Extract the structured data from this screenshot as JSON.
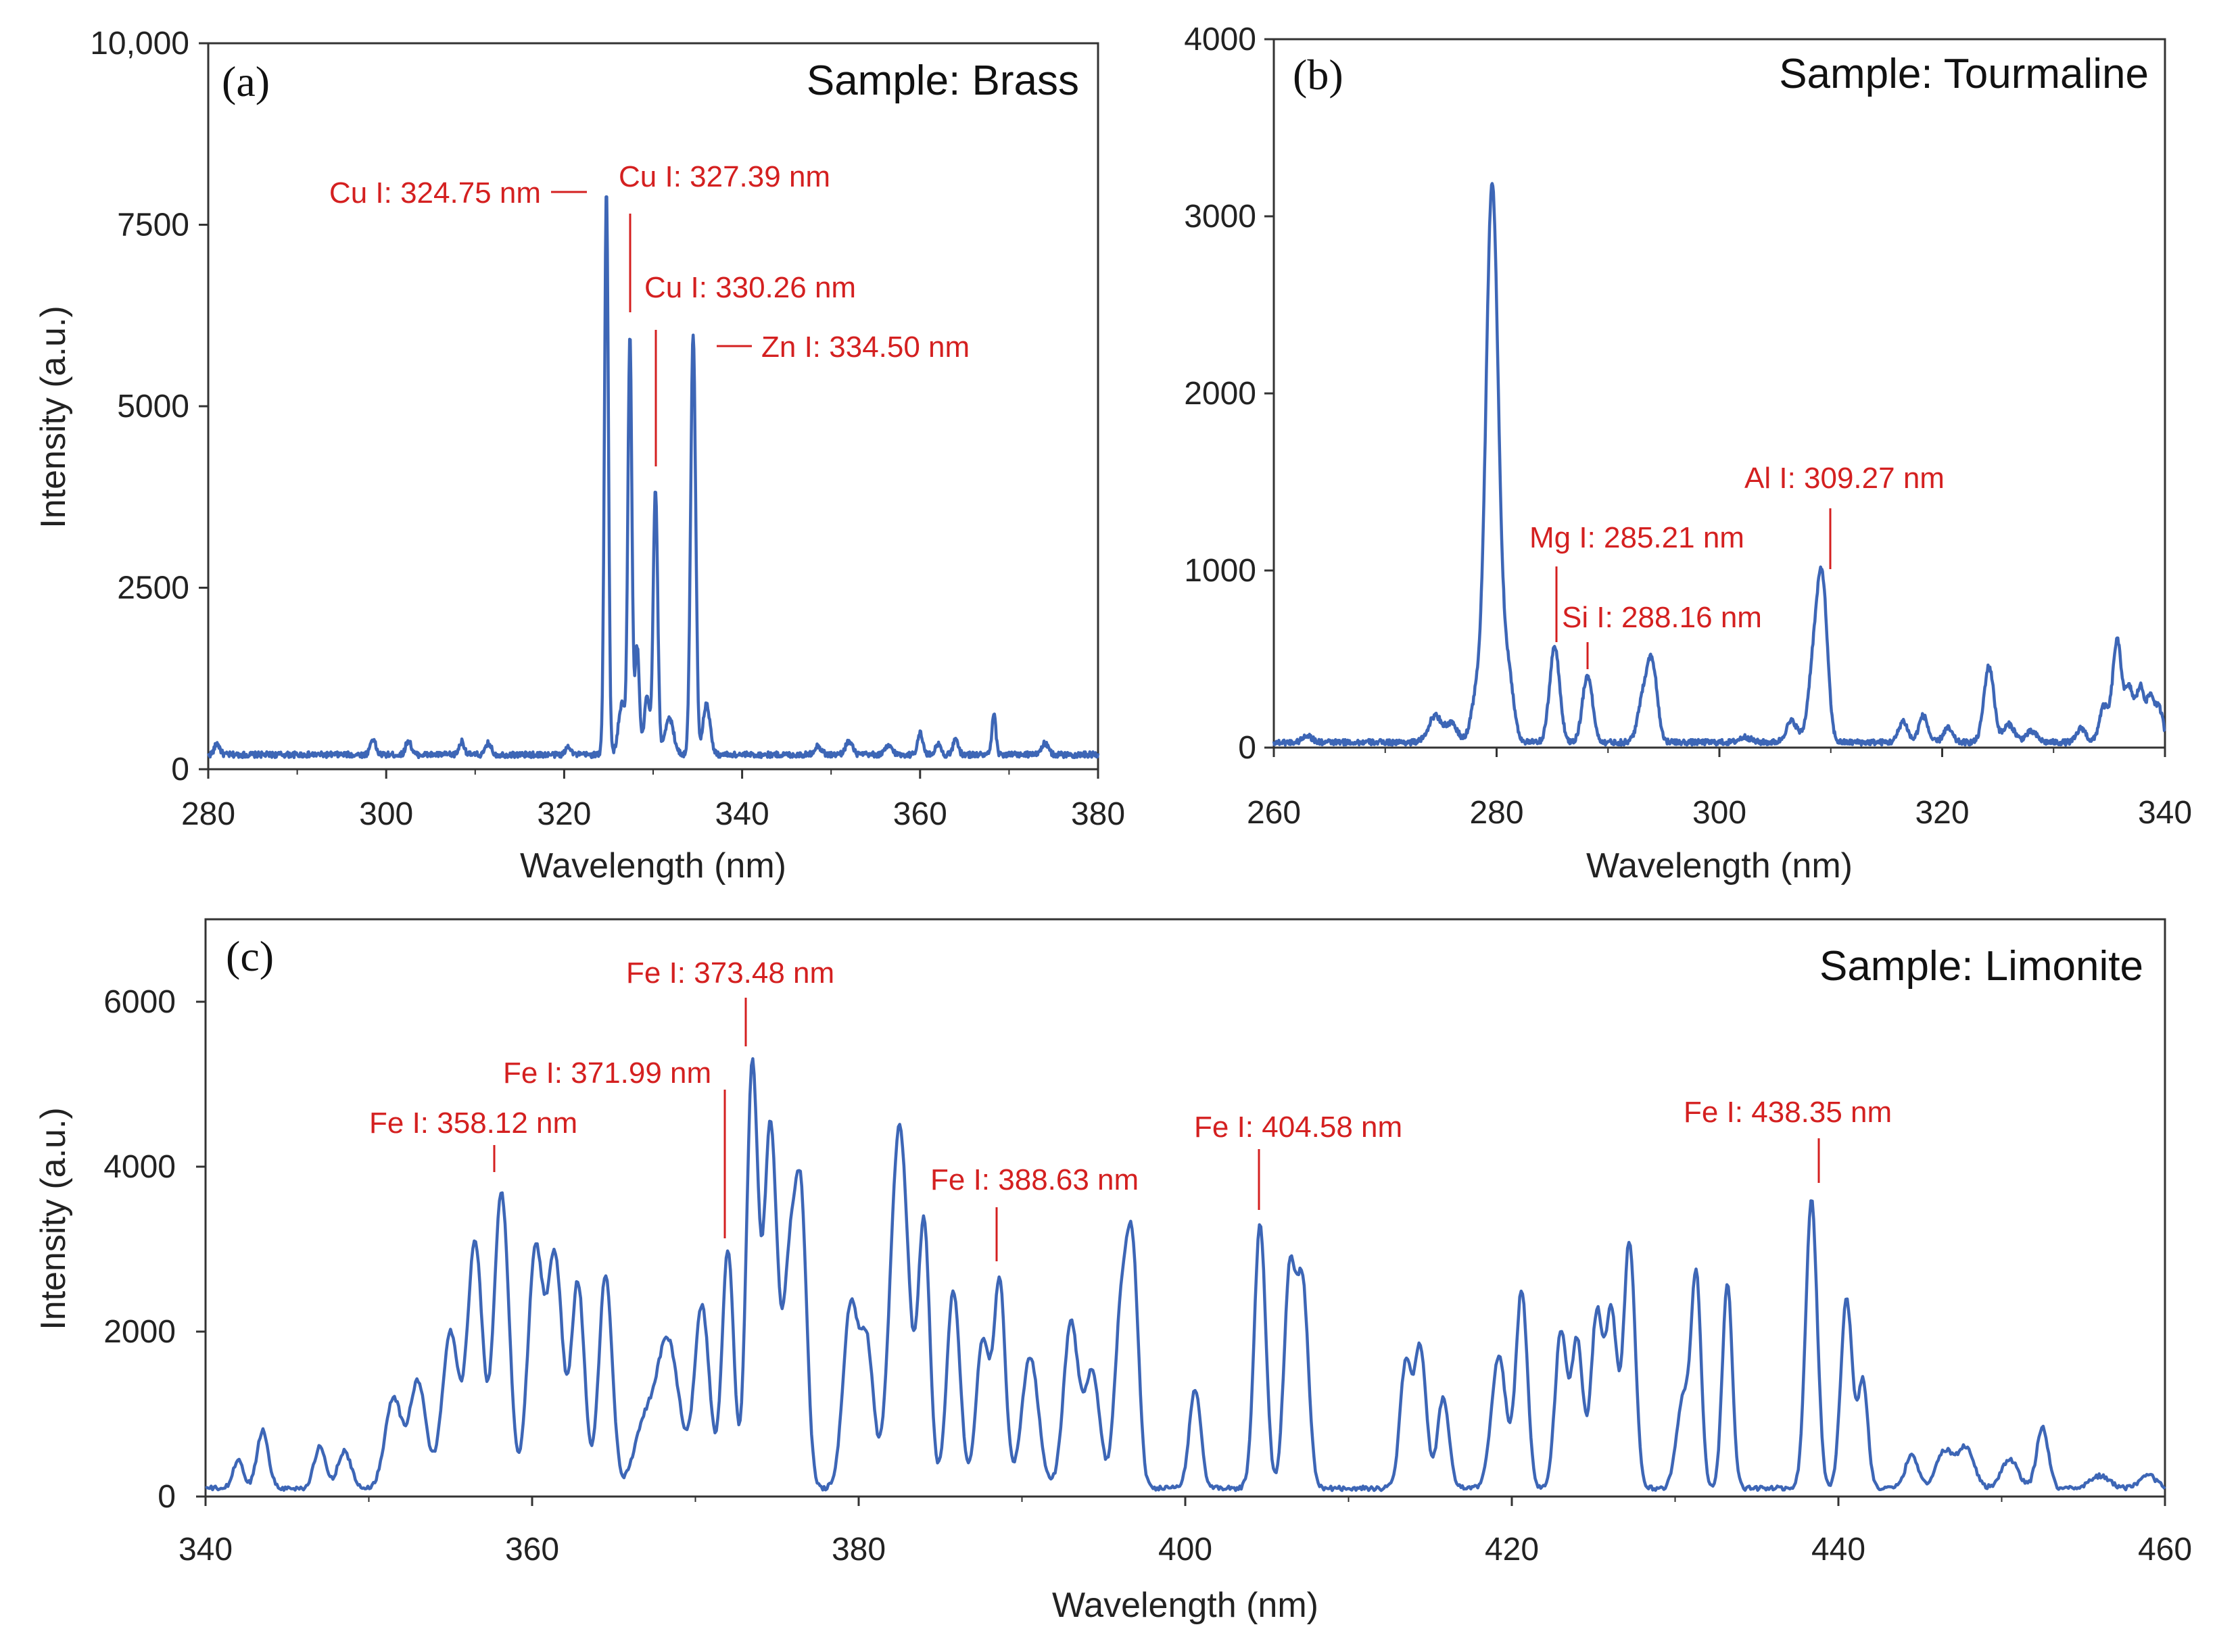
{
  "colors": {
    "line": "#3d66b6",
    "annotation": "#d42020",
    "axis": "#333333"
  },
  "chart_data": [
    {
      "id": "a",
      "type": "line",
      "panel_label": "(a)",
      "title": "Sample: Brass",
      "xlabel": "Wavelength (nm)",
      "ylabel": "Intensity (a.u.)",
      "xlim": [
        280,
        380
      ],
      "ylim": [
        0,
        10000
      ],
      "xticks": [
        280,
        300,
        320,
        340,
        360,
        380
      ],
      "yticks": [
        0,
        2500,
        5000,
        7500,
        10000
      ],
      "ytick_labels": [
        "0",
        "2500",
        "5000",
        "7500",
        "10,000"
      ],
      "baseline": 200,
      "peaks": [
        [
          281,
          150,
          0.3
        ],
        [
          298.5,
          220,
          0.3
        ],
        [
          302.5,
          200,
          0.3
        ],
        [
          308.5,
          180,
          0.3
        ],
        [
          311.5,
          160,
          0.3
        ],
        [
          320.5,
          120,
          0.3
        ],
        [
          324.75,
          7800,
          0.22
        ],
        [
          326.5,
          700,
          0.4
        ],
        [
          327.39,
          5750,
          0.22
        ],
        [
          328.2,
          1500,
          0.25
        ],
        [
          329.3,
          800,
          0.3
        ],
        [
          330.26,
          3650,
          0.25
        ],
        [
          331.8,
          500,
          0.5
        ],
        [
          334.5,
          5800,
          0.28
        ],
        [
          336,
          700,
          0.4
        ],
        [
          348.5,
          120,
          0.4
        ],
        [
          352,
          180,
          0.4
        ],
        [
          356.5,
          120,
          0.4
        ],
        [
          360,
          300,
          0.3
        ],
        [
          362,
          150,
          0.3
        ],
        [
          364,
          200,
          0.3
        ],
        [
          368.3,
          550,
          0.22
        ],
        [
          374,
          150,
          0.4
        ]
      ],
      "annotations": [
        {
          "text": "Cu I: 324.75 nm",
          "x": 324.75,
          "y": 7800,
          "anchor": "left-of-peak"
        },
        {
          "text": "Cu I: 327.39 nm",
          "x": 327.39,
          "y": 5750,
          "anchor": "above-right"
        },
        {
          "text": "Cu I: 330.26 nm",
          "x": 330.26,
          "y": 3650,
          "anchor": "above-right"
        },
        {
          "text": "Zn I: 334.50 nm",
          "x": 334.5,
          "y": 5800,
          "anchor": "right-of-peak"
        }
      ]
    },
    {
      "id": "b",
      "type": "line",
      "panel_label": "(b)",
      "title": "Sample: Tourmaline",
      "xlabel": "Wavelength (nm)",
      "ylabel": "",
      "xlim": [
        260,
        340
      ],
      "ylim": [
        0,
        4000
      ],
      "xticks": [
        260,
        280,
        300,
        320,
        340
      ],
      "yticks": [
        0,
        1000,
        2000,
        3000,
        4000
      ],
      "ytick_labels": [
        "0",
        "1000",
        "2000",
        "3000",
        "4000"
      ],
      "baseline": 30,
      "peaks": [
        [
          263,
          40,
          0.4
        ],
        [
          274.5,
          150,
          0.6
        ],
        [
          276,
          100,
          0.5
        ],
        [
          278.2,
          250,
          0.5
        ],
        [
          279.6,
          3150,
          0.55
        ],
        [
          281,
          400,
          0.5
        ],
        [
          285.21,
          540,
          0.45
        ],
        [
          288.16,
          380,
          0.45
        ],
        [
          293.2,
          250,
          0.5
        ],
        [
          294,
          400,
          0.45
        ],
        [
          302.3,
          30,
          0.5
        ],
        [
          306.5,
          120,
          0.5
        ],
        [
          308.5,
          450,
          0.5
        ],
        [
          309.27,
          820,
          0.45
        ],
        [
          316.5,
          120,
          0.4
        ],
        [
          318.3,
          150,
          0.4
        ],
        [
          320.5,
          80,
          0.4
        ],
        [
          324.2,
          430,
          0.45
        ],
        [
          326,
          100,
          0.5
        ],
        [
          328,
          60,
          0.5
        ],
        [
          332.5,
          80,
          0.4
        ],
        [
          334.5,
          200,
          0.4
        ],
        [
          335.7,
          570,
          0.4
        ],
        [
          336.8,
          300,
          0.4
        ],
        [
          337.8,
          300,
          0.35
        ],
        [
          338.7,
          250,
          0.35
        ],
        [
          339.5,
          180,
          0.35
        ]
      ],
      "annotations": [
        {
          "text": "Mg I: 285.21 nm",
          "x": 285.21,
          "y": 540,
          "anchor": "above"
        },
        {
          "text": "Si I: 288.16 nm",
          "x": 288.16,
          "y": 380,
          "anchor": "above"
        },
        {
          "text": "Al I: 309.27 nm",
          "x": 309.27,
          "y": 820,
          "anchor": "above"
        }
      ]
    },
    {
      "id": "c",
      "type": "line",
      "panel_label": "(c)",
      "title": "Sample: Limonite",
      "xlabel": "Wavelength (nm)",
      "ylabel": "Intensity (a.u.)",
      "xlim": [
        340,
        460
      ],
      "ylim": [
        0,
        7000
      ],
      "xticks": [
        340,
        360,
        380,
        400,
        420,
        440,
        460
      ],
      "yticks": [
        0,
        2000,
        4000,
        6000
      ],
      "ytick_labels": [
        "0",
        "2000",
        "4000",
        "6000"
      ],
      "baseline": 100,
      "peaks": [
        [
          342,
          350,
          0.3
        ],
        [
          343.5,
          700,
          0.35
        ],
        [
          347,
          500,
          0.35
        ],
        [
          348.5,
          450,
          0.4
        ],
        [
          351.5,
          1100,
          0.5
        ],
        [
          353,
          1300,
          0.5
        ],
        [
          355,
          1900,
          0.5
        ],
        [
          356.5,
          3000,
          0.45
        ],
        [
          358.12,
          3600,
          0.45
        ],
        [
          360.2,
          2900,
          0.45
        ],
        [
          361.4,
          2800,
          0.45
        ],
        [
          362.8,
          2500,
          0.4
        ],
        [
          364.5,
          2600,
          0.4
        ],
        [
          366.8,
          700,
          0.6
        ],
        [
          368.3,
          1800,
          0.7
        ],
        [
          370.4,
          2200,
          0.45
        ],
        [
          371.99,
          2900,
          0.35
        ],
        [
          373.48,
          5100,
          0.35
        ],
        [
          374.6,
          4400,
          0.4
        ],
        [
          375.8,
          2700,
          0.4
        ],
        [
          376.5,
          3100,
          0.35
        ],
        [
          379.5,
          2200,
          0.45
        ],
        [
          380.5,
          1700,
          0.4
        ],
        [
          382.5,
          4400,
          0.55
        ],
        [
          384,
          3200,
          0.35
        ],
        [
          385.8,
          2400,
          0.4
        ],
        [
          387.6,
          1800,
          0.4
        ],
        [
          388.63,
          2500,
          0.35
        ],
        [
          390.5,
          1600,
          0.5
        ],
        [
          393,
          2000,
          0.45
        ],
        [
          394.3,
          1400,
          0.45
        ],
        [
          396.1,
          2200,
          0.4
        ],
        [
          396.8,
          2600,
          0.35
        ],
        [
          400.6,
          1200,
          0.35
        ],
        [
          404.58,
          3200,
          0.35
        ],
        [
          406.4,
          2600,
          0.35
        ],
        [
          407.2,
          2400,
          0.35
        ],
        [
          413.5,
          1500,
          0.35
        ],
        [
          414.4,
          1700,
          0.35
        ],
        [
          415.8,
          1100,
          0.35
        ],
        [
          419.2,
          1600,
          0.45
        ],
        [
          420.6,
          2400,
          0.35
        ],
        [
          423,
          1900,
          0.35
        ],
        [
          424,
          1800,
          0.35
        ],
        [
          425.2,
          2100,
          0.35
        ],
        [
          426.1,
          2100,
          0.35
        ],
        [
          427.2,
          3000,
          0.35
        ],
        [
          430.5,
          1100,
          0.4
        ],
        [
          431.3,
          2500,
          0.3
        ],
        [
          433.2,
          2500,
          0.3
        ],
        [
          438.35,
          3500,
          0.35
        ],
        [
          440.5,
          2300,
          0.35
        ],
        [
          441.5,
          1300,
          0.3
        ],
        [
          444.5,
          400,
          0.4
        ],
        [
          446.5,
          450,
          0.5
        ],
        [
          447.8,
          500,
          0.5
        ],
        [
          450.5,
          350,
          0.5
        ],
        [
          452.5,
          750,
          0.35
        ],
        [
          456,
          150,
          0.6
        ],
        [
          459,
          150,
          0.5
        ]
      ],
      "annotations": [
        {
          "text": "Fe I: 358.12 nm",
          "x": 358.12,
          "y": 3600,
          "anchor": "above"
        },
        {
          "text": "Fe I: 371.99 nm",
          "x": 371.99,
          "y": 2900,
          "anchor": "above-left"
        },
        {
          "text": "Fe I: 373.48 nm",
          "x": 373.48,
          "y": 5100,
          "anchor": "above"
        },
        {
          "text": "Fe I: 388.63 nm",
          "x": 388.63,
          "y": 2500,
          "anchor": "above"
        },
        {
          "text": "Fe I: 404.58 nm",
          "x": 404.58,
          "y": 3200,
          "anchor": "above"
        },
        {
          "text": "Fe I: 438.35 nm",
          "x": 438.35,
          "y": 3500,
          "anchor": "above"
        }
      ]
    }
  ]
}
